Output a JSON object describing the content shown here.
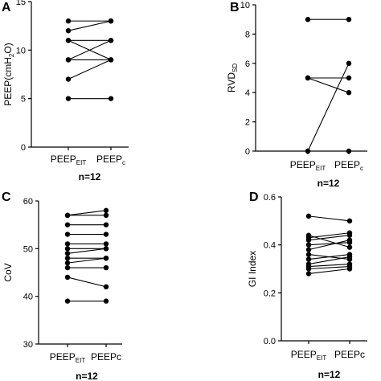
{
  "chart_data": [
    {
      "type": "line",
      "panel": "A",
      "ylabel": "PEEP(cmH",
      "ylabel_sub": "2",
      "ylabel_tail": "O)",
      "ylim": [
        0,
        15
      ],
      "yticks": [
        "0",
        "5",
        "10",
        "15"
      ],
      "categories": [
        {
          "main": "PEEP",
          "sub": "EIT"
        },
        {
          "main": "PEEP",
          "sub": "c"
        }
      ],
      "n_label": "n=12",
      "pairs": [
        [
          5,
          5
        ],
        [
          7,
          9
        ],
        [
          9,
          11
        ],
        [
          9,
          9
        ],
        [
          11,
          9
        ],
        [
          11,
          11
        ],
        [
          13,
          13
        ],
        [
          12,
          13
        ]
      ]
    },
    {
      "type": "line",
      "panel": "B",
      "ylabel": "RVD",
      "ylabel_sub": "SD",
      "ylabel_tail": "",
      "ylim": [
        0,
        10
      ],
      "yticks": [
        "0",
        "2",
        "4",
        "6",
        "8",
        "10"
      ],
      "categories": [
        {
          "main": "PEEP",
          "sub": "EIT"
        },
        {
          "main": "PEEP",
          "sub": "c"
        }
      ],
      "n_label": "n=12",
      "pairs": [
        [
          0,
          0
        ],
        [
          0,
          6
        ],
        [
          5,
          5
        ],
        [
          5,
          4
        ],
        [
          9,
          9
        ]
      ]
    },
    {
      "type": "line",
      "panel": "C",
      "ylabel": "CoV",
      "ylabel_sub": "",
      "ylabel_tail": "",
      "ylim": [
        30,
        60
      ],
      "yticks": [
        "30",
        "40",
        "50",
        "60"
      ],
      "categories": [
        {
          "main": "PEEP",
          "sub": "EIT"
        },
        {
          "main": "PEEPc",
          "sub": ""
        }
      ],
      "n_label": "n=12",
      "pairs": [
        [
          39,
          39
        ],
        [
          44,
          42
        ],
        [
          46,
          46
        ],
        [
          47,
          48
        ],
        [
          48,
          48
        ],
        [
          49,
          50
        ],
        [
          50,
          50
        ],
        [
          51,
          51
        ],
        [
          53,
          53
        ],
        [
          55,
          55
        ],
        [
          57,
          57
        ],
        [
          57,
          58
        ]
      ]
    },
    {
      "type": "line",
      "panel": "D",
      "ylabel": "GI Index",
      "ylabel_sub": "",
      "ylabel_tail": "",
      "ylim": [
        0.0,
        0.6
      ],
      "yticks": [
        "0.0",
        "0.2",
        "0.4",
        "0.6"
      ],
      "categories": [
        {
          "main": "PEEP",
          "sub": "EIT"
        },
        {
          "main": "PEEPc",
          "sub": ""
        }
      ],
      "n_label": "n=12",
      "pairs": [
        [
          0.28,
          0.3
        ],
        [
          0.3,
          0.31
        ],
        [
          0.31,
          0.32
        ],
        [
          0.32,
          0.35
        ],
        [
          0.34,
          0.36
        ],
        [
          0.36,
          0.34
        ],
        [
          0.38,
          0.42
        ],
        [
          0.4,
          0.41
        ],
        [
          0.42,
          0.44
        ],
        [
          0.43,
          0.45
        ],
        [
          0.44,
          0.39
        ],
        [
          0.52,
          0.5
        ]
      ]
    }
  ]
}
